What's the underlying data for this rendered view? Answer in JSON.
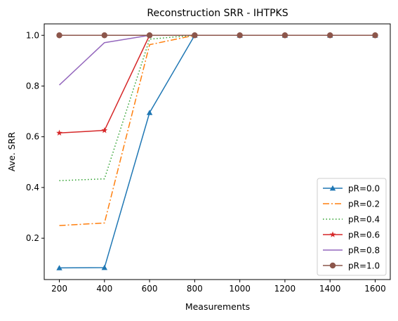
{
  "chart_data": {
    "type": "line",
    "title": "Reconstruction SRR - IHTPKS",
    "xlabel": "Measurements",
    "ylabel": "Ave. SRR",
    "x": [
      200,
      400,
      600,
      800,
      1000,
      1200,
      1400,
      1600
    ],
    "xticks": [
      "200",
      "400",
      "600",
      "800",
      "1000",
      "1200",
      "1400",
      "1600"
    ],
    "yticks": [
      "0.2",
      "0.4",
      "0.6",
      "0.8",
      "1.0"
    ],
    "xlim": [
      133,
      1667
    ],
    "ylim": [
      0.037,
      1.045
    ],
    "grid": false,
    "legend_position": "lower-right",
    "series": [
      {
        "name": "pR=0.0",
        "values": [
          0.083,
          0.084,
          0.695,
          1.0,
          1.0,
          1.0,
          1.0,
          1.0
        ],
        "color": "#1f77b4",
        "linestyle": "solid",
        "marker": "triangle"
      },
      {
        "name": "pR=0.2",
        "values": [
          0.25,
          0.26,
          0.963,
          1.0,
          1.0,
          1.0,
          1.0,
          1.0
        ],
        "color": "#ff7f0e",
        "linestyle": "dashdot",
        "marker": "none"
      },
      {
        "name": "pR=0.4",
        "values": [
          0.427,
          0.434,
          0.985,
          1.0,
          1.0,
          1.0,
          1.0,
          1.0
        ],
        "color": "#2ca02c",
        "linestyle": "dotted",
        "marker": "none"
      },
      {
        "name": "pR=0.6",
        "values": [
          0.615,
          0.625,
          1.0,
          1.0,
          1.0,
          1.0,
          1.0,
          1.0
        ],
        "color": "#d62728",
        "linestyle": "solid",
        "marker": "star"
      },
      {
        "name": "pR=0.8",
        "values": [
          0.804,
          0.971,
          1.0,
          1.0,
          1.0,
          1.0,
          1.0,
          1.0
        ],
        "color": "#9467bd",
        "linestyle": "solid",
        "marker": "none"
      },
      {
        "name": "pR=1.0",
        "values": [
          1.0,
          1.0,
          1.0,
          1.0,
          1.0,
          1.0,
          1.0,
          1.0
        ],
        "color": "#8c564b",
        "linestyle": "solid",
        "marker": "circle"
      }
    ]
  }
}
